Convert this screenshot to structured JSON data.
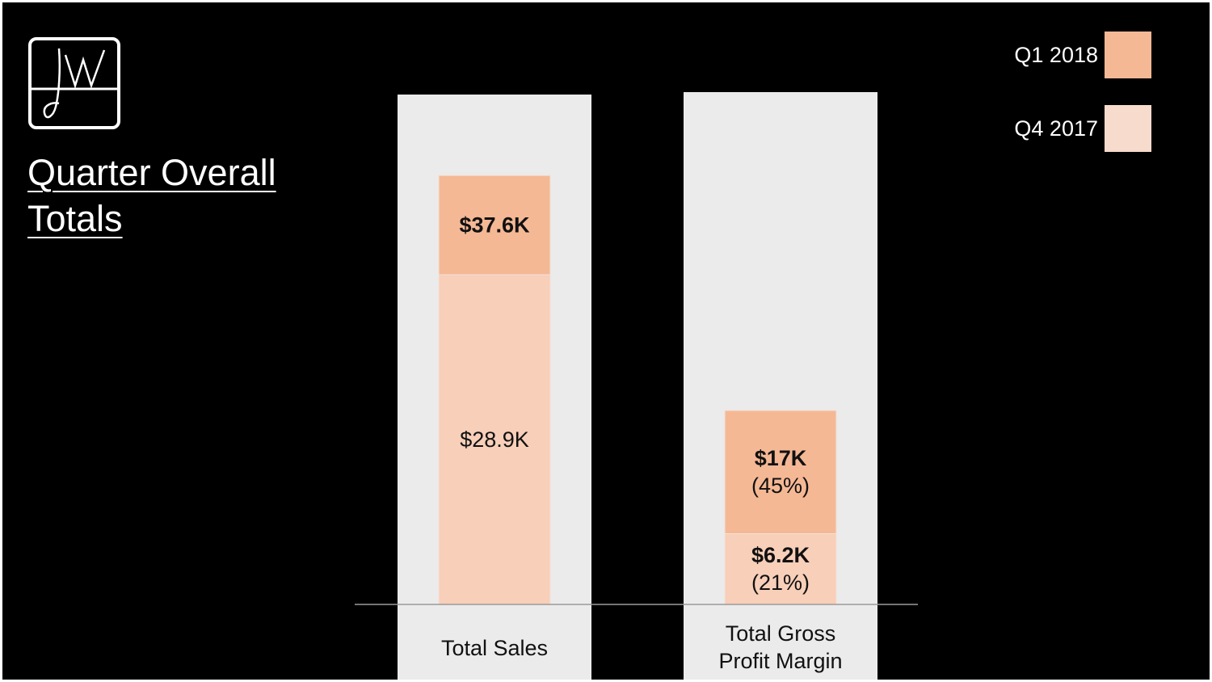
{
  "title": "Quarter Overall Totals",
  "logo_text": "JW",
  "colors": {
    "background": "#000000",
    "panel": "#ebebeb",
    "q1_2018": "#f5b895",
    "q4_2017": "#f8cfb9",
    "text": "#111111"
  },
  "legend": [
    {
      "label": "Q1 2018",
      "color": "#f5b895"
    },
    {
      "label": "Q4 2017",
      "color": "#f7dbcc"
    }
  ],
  "chart_data": {
    "type": "bar",
    "stacked": true,
    "categories": [
      "Total Sales",
      "Total Gross Profit Margin"
    ],
    "category_lines": [
      [
        "Total Sales"
      ],
      [
        "Total Gross",
        "Profit Margin"
      ]
    ],
    "series": [
      {
        "name": "Q4 2017",
        "values": [
          28.9,
          6.2
        ],
        "labels": [
          [
            "$28.9K"
          ],
          [
            "$6.2K",
            "(21%)"
          ]
        ],
        "bold": [
          false,
          true
        ]
      },
      {
        "name": "Q1 2018",
        "values": [
          8.7,
          10.8
        ],
        "labels": [
          [
            "$37.6K"
          ],
          [
            "$17K",
            "(45%)"
          ]
        ],
        "bold": [
          true,
          true
        ]
      }
    ],
    "ylim": [
      0,
      42
    ],
    "legend_position": "top-right"
  }
}
